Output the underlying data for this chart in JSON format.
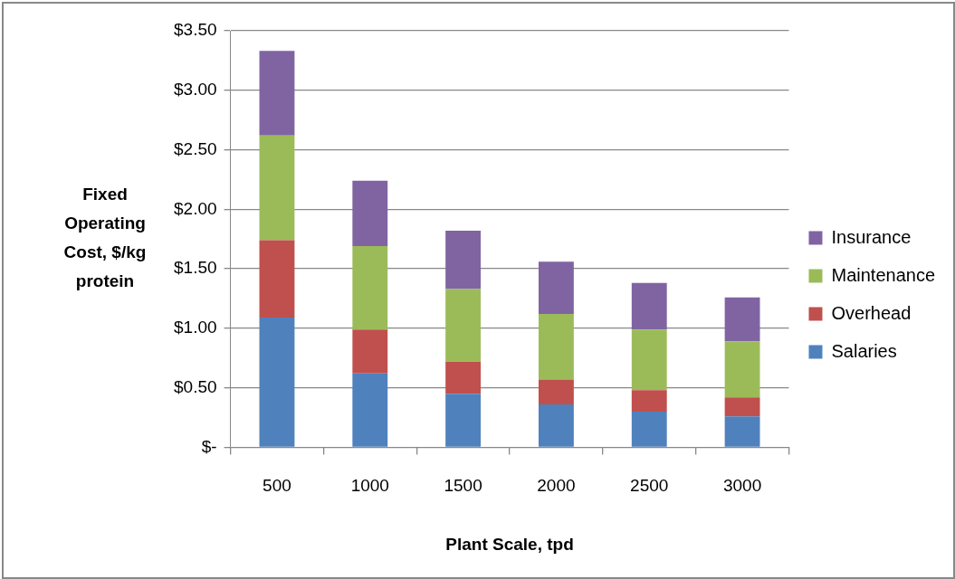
{
  "chart_data": {
    "type": "bar",
    "stacked": true,
    "xlabel": "Plant Scale, tpd",
    "ylabel": "Fixed Operating Cost, $/kg protein",
    "categories": [
      "500",
      "1000",
      "1500",
      "2000",
      "2500",
      "3000"
    ],
    "series": [
      {
        "name": "Salaries",
        "color": "#4f81bd",
        "values": [
          1.09,
          0.62,
          0.45,
          0.36,
          0.3,
          0.26
        ]
      },
      {
        "name": "Overhead",
        "color": "#c0504d",
        "values": [
          0.65,
          0.37,
          0.27,
          0.21,
          0.18,
          0.16
        ]
      },
      {
        "name": "Maintenance",
        "color": "#9bbb59",
        "values": [
          0.88,
          0.7,
          0.61,
          0.55,
          0.51,
          0.47
        ]
      },
      {
        "name": "Insurance",
        "color": "#8064a2",
        "values": [
          0.71,
          0.55,
          0.49,
          0.44,
          0.39,
          0.37
        ]
      }
    ],
    "ylim": [
      0,
      3.5
    ],
    "yticks": [
      {
        "value": 0,
        "label": "$-"
      },
      {
        "value": 0.5,
        "label": "$0.50"
      },
      {
        "value": 1,
        "label": "$1.00"
      },
      {
        "value": 1.5,
        "label": "$1.50"
      },
      {
        "value": 2,
        "label": "$2.00"
      },
      {
        "value": 2.5,
        "label": "$2.50"
      },
      {
        "value": 3,
        "label": "$3.00"
      },
      {
        "value": 3.5,
        "label": "$3.50"
      }
    ],
    "grid": "y",
    "legend": "right"
  }
}
